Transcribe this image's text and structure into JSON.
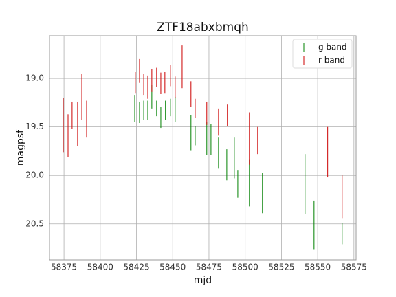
{
  "chart_data": {
    "type": "errorbar",
    "title": "ZTF18abxbmqh",
    "x_label": "mjd",
    "y_label": "magpsf",
    "xlim": [
      58365,
      58576.5
    ],
    "ylim": [
      20.87,
      18.56
    ],
    "xticks": [
      58375,
      58400,
      58425,
      58450,
      58475,
      58500,
      58525,
      58550,
      58575
    ],
    "yticks": [
      {
        "value": 19.0,
        "label": "19.0"
      },
      19.5,
      {
        "value": 20.0,
        "label": "20.0"
      },
      20.5
    ],
    "grid": true,
    "legend": "upper right",
    "series": [
      {
        "name": "g band",
        "color": "#008000",
        "x": [
          58423.8,
          58427.1,
          58430.0,
          58432.8,
          58435.6,
          58438.9,
          58441.8,
          58445.0,
          58448.4,
          58451.7,
          58462.6,
          58465.5,
          58473.5,
          58476.4,
          58481.6,
          58487.3,
          58492.5,
          58494.9,
          58502.9,
          58511.9,
          58541.3,
          58547.5,
          58566.9
        ],
        "values": [
          19.31,
          19.35,
          19.33,
          19.33,
          19.19,
          19.31,
          19.4,
          19.33,
          19.3,
          19.32,
          19.56,
          19.59,
          19.62,
          19.63,
          19.77,
          19.89,
          19.82,
          20.09,
          20.08,
          20.18,
          20.09,
          20.51,
          20.6
        ],
        "errors": [
          0.14,
          0.11,
          0.1,
          0.1,
          0.12,
          0.08,
          0.11,
          0.1,
          0.09,
          0.13,
          0.18,
          0.1,
          0.17,
          0.16,
          0.16,
          0.16,
          0.21,
          0.14,
          0.24,
          0.21,
          0.31,
          0.25,
          0.11
        ]
      },
      {
        "name": "r band",
        "color": "#cc0000",
        "x": [
          58374.5,
          58377.8,
          58380.6,
          58384.4,
          58387.3,
          58390.6,
          58424.2,
          58427.1,
          58430.0,
          58432.8,
          58435.6,
          58438.9,
          58441.8,
          58444.6,
          58448.4,
          58451.7,
          58456.5,
          58462.6,
          58465.5,
          58473.5,
          58481.6,
          58487.7,
          58502.9,
          58508.6,
          58556.9,
          58566.9
        ],
        "values": [
          19.48,
          19.59,
          19.38,
          19.47,
          19.19,
          19.42,
          19.04,
          18.92,
          19.06,
          19.09,
          19.02,
          18.99,
          19.05,
          19.04,
          18.97,
          19.09,
          18.88,
          19.16,
          19.31,
          19.36,
          19.45,
          19.38,
          19.62,
          19.64,
          19.76,
          20.22
        ],
        "errors": [
          0.28,
          0.22,
          0.14,
          0.23,
          0.24,
          0.19,
          0.11,
          0.12,
          0.11,
          0.12,
          0.12,
          0.1,
          0.11,
          0.11,
          0.11,
          0.11,
          0.22,
          0.13,
          0.1,
          0.12,
          0.14,
          0.11,
          0.27,
          0.14,
          0.26,
          0.22
        ]
      }
    ]
  }
}
